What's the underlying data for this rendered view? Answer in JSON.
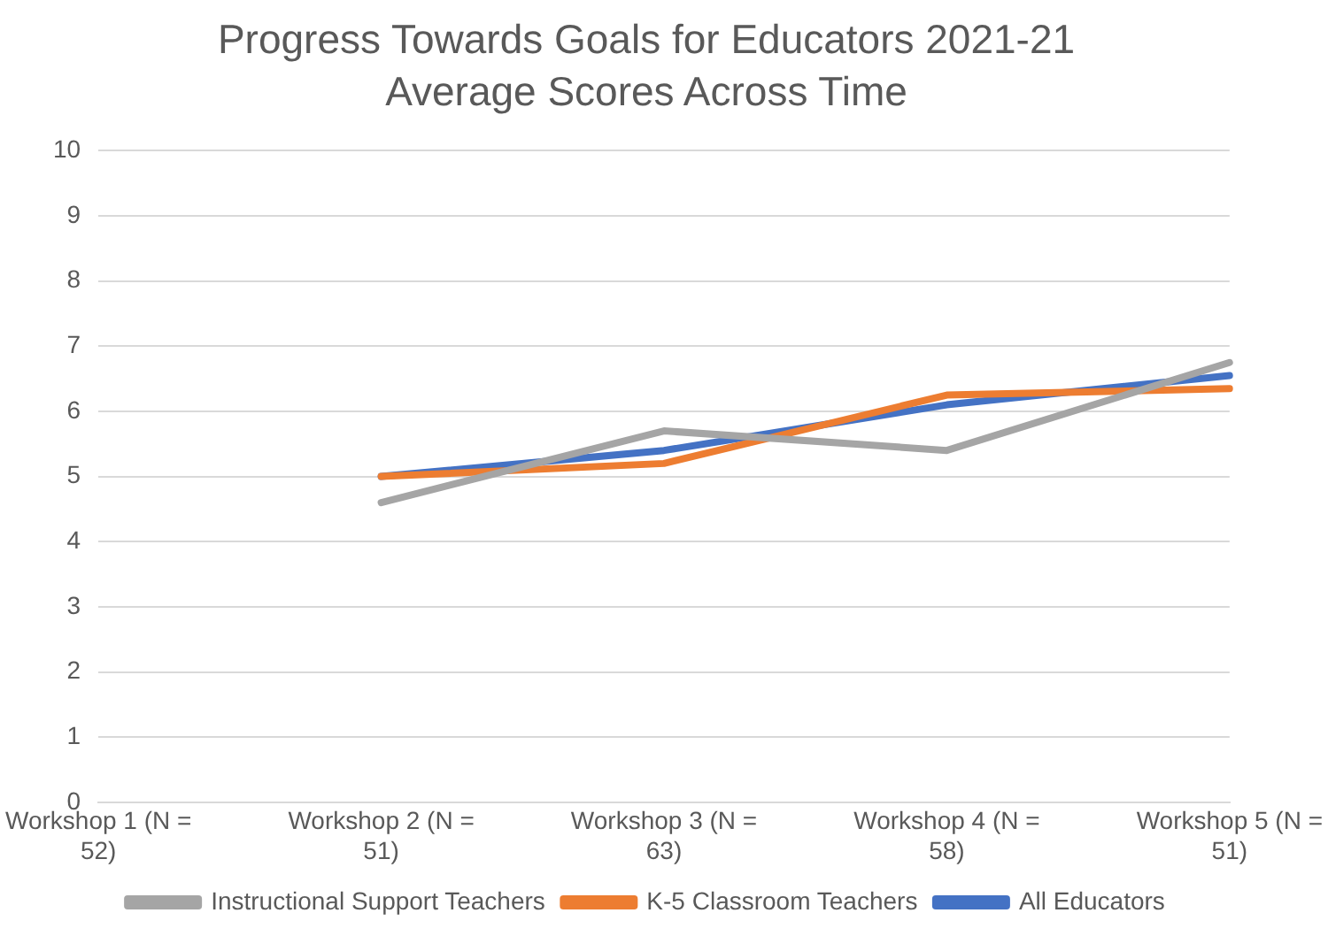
{
  "chart_data": {
    "type": "line",
    "title": "Progress Towards Goals for Educators 2021-21",
    "subtitle": "Average Scores Across Time",
    "categories": [
      "Workshop 1 (N = 52)",
      "Workshop 2 (N = 51)",
      "Workshop 3 (N = 63)",
      "Workshop 4 (N = 58)",
      "Workshop 5 (N = 51)"
    ],
    "series": [
      {
        "name": "All Educators",
        "color": "#4472c4",
        "values": [
          null,
          5.0,
          5.4,
          6.1,
          6.55
        ]
      },
      {
        "name": "K-5 Classroom Teachers",
        "color": "#ed7d31",
        "values": [
          null,
          5.0,
          5.2,
          6.25,
          6.35
        ]
      },
      {
        "name": "Instructional Support Teachers",
        "color": "#a5a5a5",
        "values": [
          null,
          4.6,
          5.7,
          5.4,
          6.75
        ]
      }
    ],
    "ylim": [
      0,
      10
    ],
    "yticks": [
      0,
      1,
      2,
      3,
      4,
      5,
      6,
      7,
      8,
      9,
      10
    ],
    "grid": "y",
    "legend": "bottom",
    "marker": "none",
    "line_style": "solid"
  }
}
